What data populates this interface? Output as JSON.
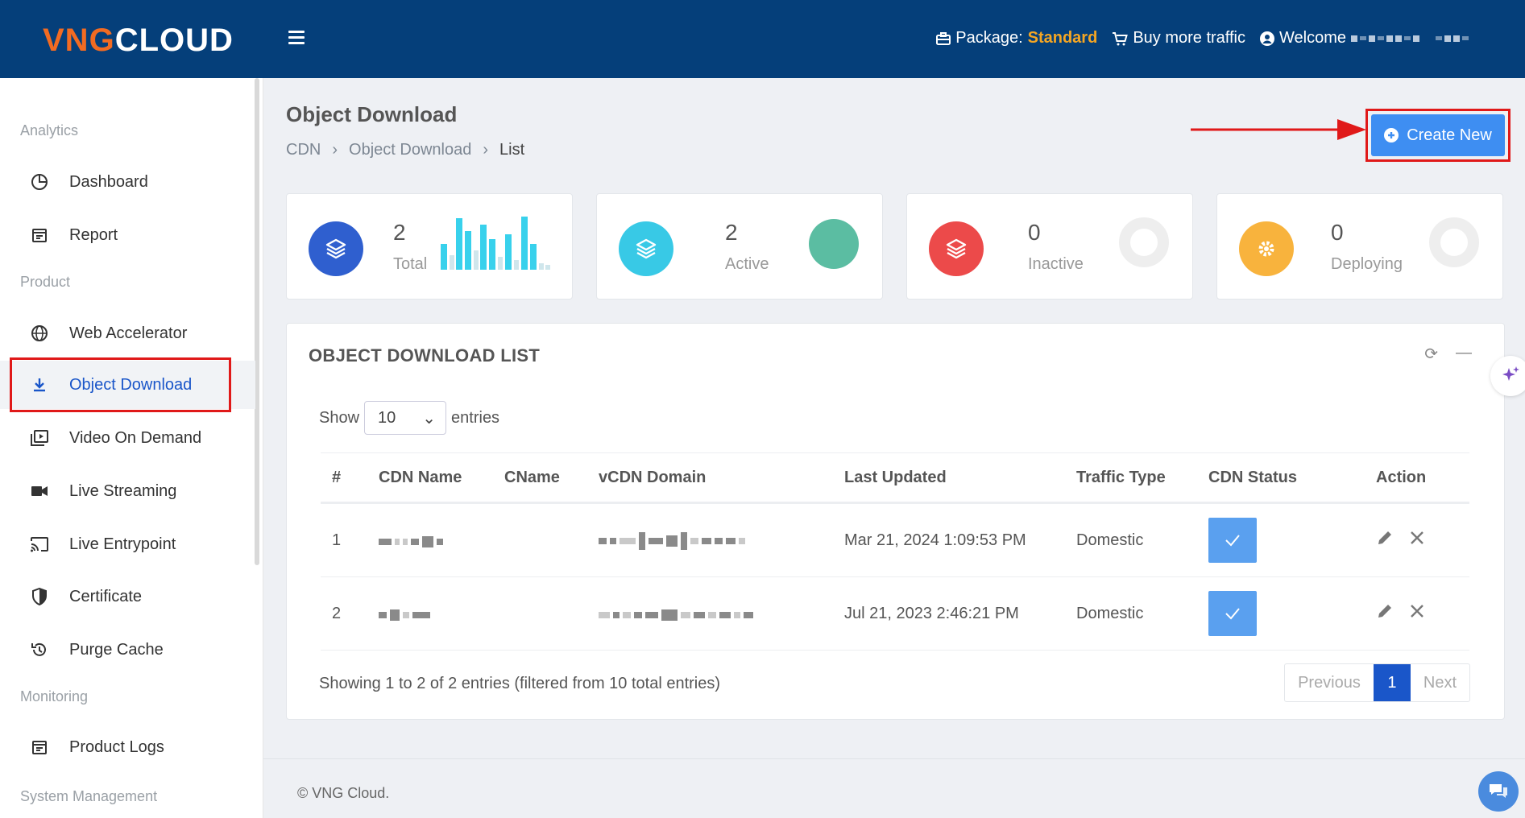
{
  "header": {
    "logo_vng": "VNG",
    "logo_cloud": "CLOUD",
    "package_label": "Package:",
    "package_value": "Standard",
    "buy_traffic": "Buy more traffic",
    "welcome": "Welcome"
  },
  "sidebar": {
    "sections": {
      "analytics": "Analytics",
      "product": "Product",
      "monitoring": "Monitoring",
      "system": "System Management"
    },
    "items": {
      "dashboard": "Dashboard",
      "report": "Report",
      "web_accelerator": "Web Accelerator",
      "object_download": "Object Download",
      "video_on_demand": "Video On Demand",
      "live_streaming": "Live Streaming",
      "live_entrypoint": "Live Entrypoint",
      "certificate": "Certificate",
      "purge_cache": "Purge Cache",
      "product_logs": "Product Logs"
    }
  },
  "page": {
    "title": "Object Download",
    "breadcrumb": [
      "CDN",
      "Object Download",
      "List"
    ],
    "create_button": "Create New"
  },
  "stats": [
    {
      "value": "2",
      "label": "Total",
      "color": "#2f5fcf"
    },
    {
      "value": "2",
      "label": "Active",
      "color": "#38c9e6"
    },
    {
      "value": "0",
      "label": "Inactive",
      "color": "#ec4a4a"
    },
    {
      "value": "0",
      "label": "Deploying",
      "color": "#f8b33d"
    }
  ],
  "list": {
    "title": "OBJECT DOWNLOAD LIST",
    "show": "Show",
    "entries": "entries",
    "page_size": "10",
    "columns": [
      "#",
      "CDN Name",
      "CName",
      "vCDN Domain",
      "Last Updated",
      "Traffic Type",
      "CDN Status",
      "Action"
    ],
    "rows": [
      {
        "index": "1",
        "last_updated": "Mar 21, 2024 1:09:53 PM",
        "traffic_type": "Domestic"
      },
      {
        "index": "2",
        "last_updated": "Jul 21, 2023 2:46:21 PM",
        "traffic_type": "Domestic"
      }
    ],
    "info": "Showing 1 to 2 of 2 entries (filtered from 10 total entries)",
    "pager": {
      "previous": "Previous",
      "current": "1",
      "next": "Next"
    }
  },
  "footer": {
    "copyright": "© VNG Cloud."
  }
}
